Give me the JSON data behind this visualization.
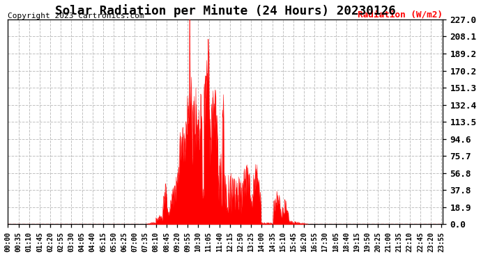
{
  "title": "Solar Radiation per Minute (24 Hours) 20230126",
  "ylabel": "Radiation (W/m2)",
  "copyright": "Copyright 2023 Cartronics.com",
  "y_ticks": [
    0.0,
    18.9,
    37.8,
    56.8,
    75.7,
    94.6,
    113.5,
    132.4,
    151.3,
    170.2,
    189.2,
    208.1,
    227.0
  ],
  "ylim": [
    0.0,
    227.0
  ],
  "fill_color": "#FF0000",
  "line_color": "#FF0000",
  "bg_color": "#FFFFFF",
  "grid_color": "#C0C0C0",
  "hline_color": "#FF0000",
  "title_fontsize": 11,
  "xlabel_fontsize": 6,
  "ylabel_fontsize": 8,
  "ytick_fontsize": 8,
  "copyright_fontsize": 7,
  "x_tick_labels": [
    "00:00",
    "00:35",
    "01:10",
    "01:45",
    "02:20",
    "02:55",
    "03:30",
    "04:05",
    "04:40",
    "05:15",
    "05:50",
    "06:25",
    "07:00",
    "07:35",
    "08:10",
    "08:45",
    "09:20",
    "09:55",
    "10:30",
    "11:05",
    "11:40",
    "12:15",
    "12:50",
    "13:25",
    "14:00",
    "14:35",
    "15:10",
    "15:45",
    "16:20",
    "16:55",
    "17:30",
    "18:05",
    "18:40",
    "19:15",
    "19:50",
    "20:25",
    "21:00",
    "21:35",
    "22:10",
    "22:45",
    "23:20",
    "23:55"
  ],
  "num_minutes": 1440,
  "sunrise_min": 455,
  "sunset_min": 1000,
  "max_radiation": 227.0
}
